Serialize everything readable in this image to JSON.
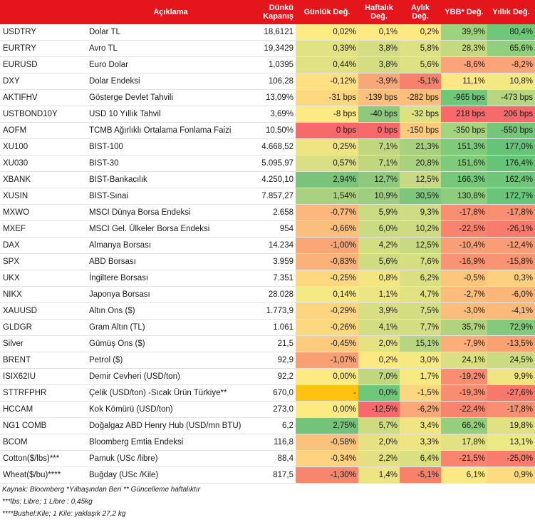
{
  "headers": {
    "code": "",
    "description": "Açıklama",
    "close": "Dünkü Kapanış",
    "daily": "Günlük Değ.",
    "weekly": "Haftalık Değ.",
    "monthly": "Aylık Değ.",
    "ytd": "YBB* Değ.",
    "yearly": "Yıllık Değ."
  },
  "rows": [
    {
      "code": "USDTRY",
      "desc": "Dolar TL",
      "close": "18,6121",
      "daily": "0,02%",
      "weekly": "0,1%",
      "monthly": "0,2%",
      "ytd": "39,9%",
      "yearly": "80,4%",
      "colors": [
        "#fdeb84",
        "#fee983",
        "#fee983",
        "#9dd37e",
        "#6fc77a"
      ]
    },
    {
      "code": "EURTRY",
      "desc": "Avro TL",
      "close": "19,3429",
      "daily": "0,39%",
      "weekly": "3,8%",
      "monthly": "5,8%",
      "ytd": "28,3%",
      "yearly": "65,6%",
      "colors": [
        "#e3e283",
        "#d4dd81",
        "#dce181",
        "#c4d980",
        "#90cf7e"
      ]
    },
    {
      "code": "EURUSD",
      "desc": "Euro Dolar",
      "close": "1,0395",
      "daily": "0,44%",
      "weekly": "3,8%",
      "monthly": "5,6%",
      "ytd": "-8,6%",
      "yearly": "-8,2%",
      "colors": [
        "#dfe183",
        "#d4dd81",
        "#dde181",
        "#fca379",
        "#fca479"
      ]
    },
    {
      "code": "DXY",
      "desc": "Dolar Endeksi",
      "close": "106,28",
      "daily": "-0,12%",
      "weekly": "-3,9%",
      "monthly": "-5,1%",
      "ytd": "11,1%",
      "yearly": "10,8%",
      "colors": [
        "#fee082",
        "#f8a877",
        "#f8816c",
        "#fbe783",
        "#f2e983"
      ]
    },
    {
      "code": "AKTIFHV",
      "desc": "Gösterge Devlet Tahvili",
      "close": "13,09%",
      "daily": "-31 bps",
      "weekly": "-139 bps",
      "monthly": "-282 bps",
      "ytd": "-965 bps",
      "yearly": "-473 bps",
      "colors": [
        "#fed880",
        "#fcc07c",
        "#fcbf7b",
        "#6fc77a",
        "#b6d780"
      ]
    },
    {
      "code": "USTBOND10Y",
      "desc": "USD 10 Yıllık Tahvil",
      "close": "3,69%",
      "daily": "-8 bps",
      "weekly": "-40 bps",
      "monthly": "-32 bps",
      "ytd": "218 bps",
      "yearly": "206 bps",
      "colors": [
        "#feea83",
        "#8ec97d",
        "#dde181",
        "#f8696b",
        "#f8696b"
      ]
    },
    {
      "code": "AOFM",
      "desc": "TCMB Ağırlıklı Ortalama Fonlama Faizi",
      "close": "10,50%",
      "daily": "0 bps",
      "weekly": "0 bps",
      "monthly": "-150 bps",
      "ytd": "-350 bps",
      "yearly": "-550 bps",
      "colors": [
        "#f8696b",
        "#f8696b",
        "#fecb7d",
        "#a5d47f",
        "#74c77a"
      ]
    },
    {
      "code": "XU100",
      "desc": "BIST-100",
      "close": "4.668,52",
      "daily": "0,25%",
      "weekly": "7,1%",
      "monthly": "21,3%",
      "ytd": "151,3%",
      "yearly": "177,0%",
      "colors": [
        "#eee482",
        "#c0d780",
        "#a8d17e",
        "#80ca7c",
        "#66c479"
      ]
    },
    {
      "code": "XU030",
      "desc": "BIST-30",
      "close": "5.095,97",
      "daily": "0,57%",
      "weekly": "7,1%",
      "monthly": "20,8%",
      "ytd": "151,6%",
      "yearly": "176,4%",
      "colors": [
        "#d9df82",
        "#c0d780",
        "#a9d17e",
        "#80ca7c",
        "#66c479"
      ]
    },
    {
      "code": "XBANK",
      "desc": "BIST-Bankacılık",
      "close": "4.250,10",
      "daily": "2,94%",
      "weekly": "12,7%",
      "monthly": "12,5%",
      "ytd": "166,3%",
      "yearly": "162,4%",
      "colors": [
        "#79c47a",
        "#8ec97d",
        "#c7da81",
        "#76c87b",
        "#6dc67a"
      ]
    },
    {
      "code": "XUSIN",
      "desc": "BIST-Sınai",
      "close": "7.857,27",
      "daily": "1,54%",
      "weekly": "10,9%",
      "monthly": "30,5%",
      "ytd": "130,8%",
      "yearly": "172,7%",
      "colors": [
        "#a9d17f",
        "#9fce7e",
        "#7fc57b",
        "#8dce7e",
        "#69c579"
      ]
    },
    {
      "code": "MXWO",
      "desc": "MSCI Dünya Borsa Endeksi",
      "close": "2.658",
      "daily": "-0,77%",
      "weekly": "5,9%",
      "monthly": "9,3%",
      "ytd": "-17,8%",
      "yearly": "-17,8%",
      "colors": [
        "#fcb77a",
        "#cbdb81",
        "#d0dc81",
        "#f98e71",
        "#f98f71"
      ]
    },
    {
      "code": "MXEF",
      "desc": "MSCI Gel. Ülkeler Borsa Endeksi",
      "close": "954",
      "daily": "-0,66%",
      "weekly": "6,0%",
      "monthly": "10,2%",
      "ytd": "-22,5%",
      "yearly": "-26,1%",
      "colors": [
        "#fcbe7b",
        "#cadb81",
        "#cedb81",
        "#f8836e",
        "#f87b6d"
      ]
    },
    {
      "code": "DAX",
      "desc": "Almanya Borsası",
      "close": "14.234",
      "daily": "-1,00%",
      "weekly": "4,2%",
      "monthly": "12,5%",
      "ytd": "-10,4%",
      "yearly": "-12,4%",
      "colors": [
        "#faa676",
        "#d3dd81",
        "#c7da81",
        "#fa9f75",
        "#fa9c75"
      ]
    },
    {
      "code": "SPX",
      "desc": "ABD Borsası",
      "close": "3.959",
      "daily": "-0,83%",
      "weekly": "5,6%",
      "monthly": "7,6%",
      "ytd": "-16,9%",
      "yearly": "-15,8%",
      "colors": [
        "#fbb279",
        "#cfdc81",
        "#d6de82",
        "#f99373",
        "#f99473"
      ]
    },
    {
      "code": "UKX",
      "desc": "İngiltere Borsası",
      "close": "7.351",
      "daily": "-0,25%",
      "weekly": "0,8%",
      "monthly": "6,2%",
      "ytd": "-0,5%",
      "yearly": "0,3%",
      "colors": [
        "#fed880",
        "#f2e582",
        "#dadf81",
        "#fdc67d",
        "#fdd07f"
      ]
    },
    {
      "code": "NIKX",
      "desc": "Japonya Borsası",
      "close": "28.028",
      "daily": "0,14%",
      "weekly": "1,1%",
      "monthly": "4,7%",
      "ytd": "-2,7%",
      "yearly": "-6,0%",
      "colors": [
        "#f6e883",
        "#ede482",
        "#e2e282",
        "#fcbc7b",
        "#fcb67a"
      ]
    },
    {
      "code": "XAUUSD",
      "desc": "Altın Ons ($)",
      "close": "1.773,9",
      "daily": "-0,29%",
      "weekly": "3,9%",
      "monthly": "7,5%",
      "ytd": "-3,0%",
      "yearly": "-4,1%",
      "colors": [
        "#fed67f",
        "#d8df82",
        "#d5dd81",
        "#fcbc7b",
        "#fcba7a"
      ]
    },
    {
      "code": "GLDGR",
      "desc": "Gram Altın (TL)",
      "close": "1.061",
      "daily": "-0,26%",
      "weekly": "4,1%",
      "monthly": "7,7%",
      "ytd": "35,7%",
      "yearly": "72,9%",
      "colors": [
        "#fed880",
        "#d3dd81",
        "#d4dd81",
        "#b1d27f",
        "#85ca7c"
      ]
    },
    {
      "code": "Silver",
      "desc": "Gümüş Ons ($)",
      "close": "21,5",
      "daily": "-0,45%",
      "weekly": "2,0%",
      "monthly": "15,1%",
      "ytd": "-7,9%",
      "yearly": "-13,5%",
      "colors": [
        "#fdcb7d",
        "#e6e282",
        "#b7d57f",
        "#fcad78",
        "#faa174"
      ]
    },
    {
      "code": "BRENT",
      "desc": "Petrol ($)",
      "close": "92,9",
      "daily": "-1,07%",
      "weekly": "0,2%",
      "monthly": "3,0%",
      "ytd": "24,1%",
      "yearly": "24,5%",
      "colors": [
        "#f99f74",
        "#fde983",
        "#f6e983",
        "#d9df82",
        "#cbdb81"
      ]
    },
    {
      "code": "ISIX62IU",
      "desc": "Demir Cevheri (USD/ton)",
      "close": "92,2",
      "daily": "0,00%",
      "weekly": "7,0%",
      "monthly": "1,7%",
      "ytd": "-19,2%",
      "yearly": "9,9%",
      "colors": [
        "#feea83",
        "#c0d780",
        "#f8e983",
        "#f98d71",
        "#f1e582"
      ]
    },
    {
      "code": "STTRFPHR",
      "desc": "Çelik (USD/ton) -Sıcak Ürün Türkiye**",
      "close": "670,0",
      "daily": "-",
      "weekly": "0,0%",
      "monthly": "-1,5%",
      "ytd": "-19,3%",
      "yearly": "-27,6%",
      "colors": [
        "#ffc20e",
        "#6fc77a",
        "#fdd780",
        "#f98d71",
        "#f8786c"
      ]
    },
    {
      "code": "HCCAM",
      "desc": "Kok Kömürü (USD/ton)",
      "close": "273,0",
      "daily": "0,00%",
      "weekly": "-12,5%",
      "monthly": "-6,2%",
      "ytd": "-22,4%",
      "yearly": "-17,8%",
      "colors": [
        "#feea83",
        "#f8696b",
        "#fba978",
        "#f8836e",
        "#f98f71"
      ]
    },
    {
      "code": "NG1 COMB",
      "desc": "Doğalgaz ABD Henry Hub (USD/mn BTU)",
      "close": "6,2",
      "daily": "2,75%",
      "weekly": "5,7%",
      "monthly": "3,4%",
      "ytd": "66,2%",
      "yearly": "19,8%",
      "colors": [
        "#74c37a",
        "#cddc81",
        "#f0e582",
        "#95cf7d",
        "#e0e182"
      ]
    },
    {
      "code": "BCOM",
      "desc": "Bloomberg Emtia Endeksi",
      "close": "116,8",
      "daily": "-0,58%",
      "weekly": "2,0%",
      "monthly": "3,3%",
      "ytd": "17,8%",
      "yearly": "13,1%",
      "colors": [
        "#fcc27c",
        "#e6e282",
        "#eee482",
        "#e3e282",
        "#ecea83"
      ]
    },
    {
      "code": "Cotton($/lbs)***",
      "desc": "Pamuk (USc /libre)",
      "close": "88,4",
      "daily": "-0,34%",
      "weekly": "2,2%",
      "monthly": "6,4%",
      "ytd": "-21,5%",
      "yearly": "-25,0%",
      "colors": [
        "#fed27f",
        "#e2e082",
        "#dadf81",
        "#f8856f",
        "#f87d6d"
      ]
    },
    {
      "code": "Wheat($/bu)****",
      "desc": "Buğday (USc /Kile)",
      "close": "817,5",
      "daily": "-1,30%",
      "weekly": "1,4%",
      "monthly": "-5,1%",
      "ytd": "6,1%",
      "yearly": "0,9%",
      "colors": [
        "#f8866f",
        "#ede482",
        "#f8816c",
        "#fde983",
        "#feda80"
      ]
    }
  ],
  "notes": [
    "Kaynak: Bloomberg *Yılbaşından Beri  ** Güncelleme haftalıktır",
    "***lbs: Libre; 1 Libre : 0,45kg",
    "****Bushel:Kile; 1 Kile: yaklaşık 27,2 kg"
  ]
}
